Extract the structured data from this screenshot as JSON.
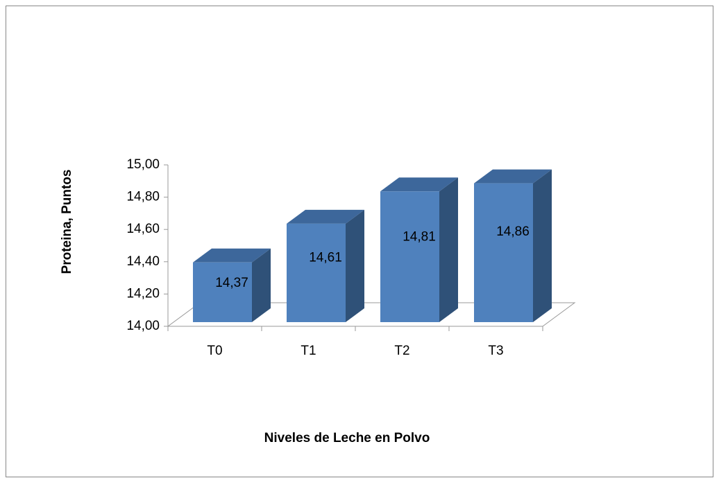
{
  "chart_data": {
    "type": "bar3d",
    "x_label": "Niveles de Leche en Polvo",
    "y_label": "Proteina, Puntos",
    "categories": [
      "T0",
      "T1",
      "T2",
      "T3"
    ],
    "values": [
      14.37,
      14.61,
      14.81,
      14.86
    ],
    "value_labels": [
      "14,37",
      "14,61",
      "14,81",
      "14,86"
    ],
    "color": "#4f81bd",
    "ylim": [
      14,
      15
    ],
    "yticks": [
      {
        "value": 14,
        "label": "14,00"
      },
      {
        "value": 14.2,
        "label": "14,20"
      },
      {
        "value": 14.4,
        "label": "14,40"
      },
      {
        "value": 14.6,
        "label": "14,60"
      },
      {
        "value": 14.8,
        "label": "14,80"
      },
      {
        "value": 15,
        "label": "15,00"
      }
    ],
    "grid": false
  }
}
